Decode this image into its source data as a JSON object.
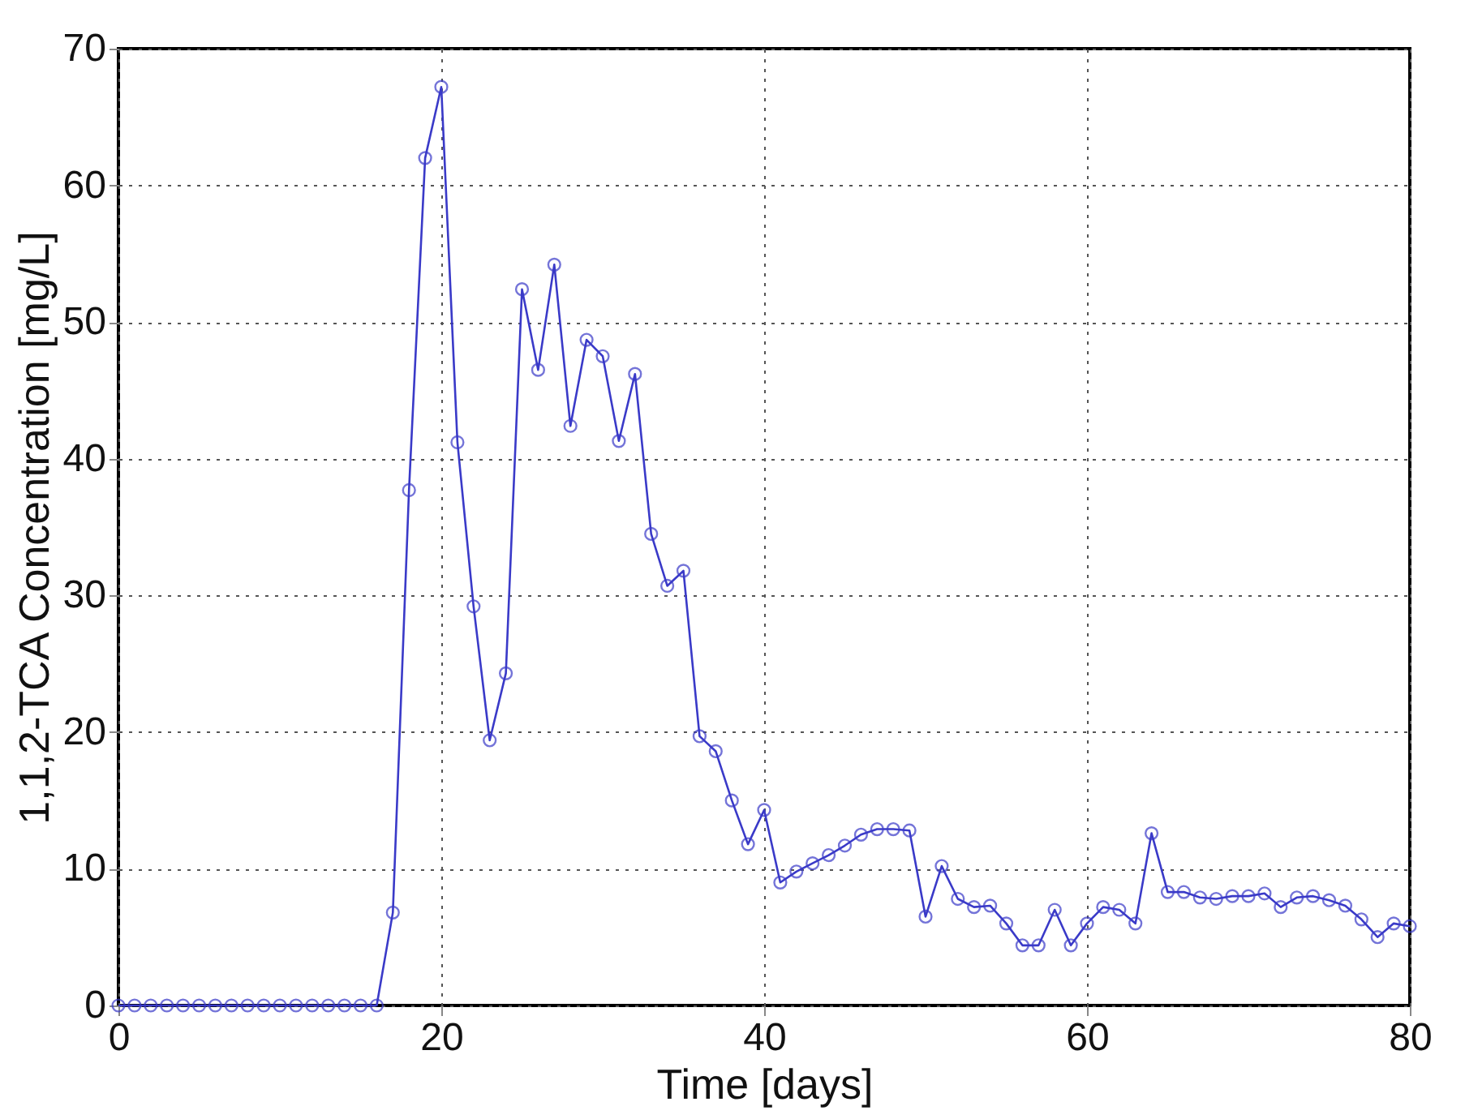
{
  "chart_data": {
    "type": "line",
    "xlabel": "Time [days]",
    "ylabel": "1,1,2-TCA Concentration [mg/L]",
    "x": [
      0,
      1,
      2,
      3,
      4,
      5,
      6,
      7,
      8,
      9,
      10,
      11,
      12,
      13,
      14,
      15,
      16,
      17,
      18,
      19,
      20,
      21,
      22,
      23,
      24,
      25,
      26,
      27,
      28,
      29,
      30,
      31,
      32,
      33,
      34,
      35,
      36,
      37,
      38,
      39,
      40,
      41,
      42,
      43,
      44,
      45,
      46,
      47,
      48,
      49,
      50,
      51,
      52,
      53,
      54,
      55,
      56,
      57,
      58,
      59,
      60,
      61,
      62,
      63,
      64,
      65,
      66,
      67,
      68,
      69,
      70,
      71,
      72,
      73,
      74,
      75,
      76,
      77,
      78,
      79,
      80
    ],
    "series": [
      {
        "color": "#3a3ac8",
        "values": [
          0,
          0,
          0,
          0,
          0,
          0,
          0,
          0,
          0,
          0,
          0,
          0,
          0,
          0,
          0,
          0,
          0,
          6.8,
          37.7,
          62,
          67.2,
          41.2,
          29.2,
          19.4,
          24.3,
          52.4,
          46.5,
          54.2,
          42.4,
          48.7,
          47.5,
          41.3,
          46.2,
          34.5,
          30.7,
          31.8,
          19.7,
          18.6,
          15,
          11.8,
          14.3,
          9,
          9.8,
          10.4,
          11,
          11.7,
          12.5,
          12.9,
          12.9,
          12.8,
          6.5,
          10.2,
          7.8,
          7.2,
          7.3,
          6,
          4.4,
          4.4,
          7,
          4.4,
          6,
          7.2,
          7,
          6,
          12.6,
          8.3,
          8.3,
          7.9,
          7.8,
          8,
          8,
          8.2,
          7.2,
          7.9,
          8,
          7.7,
          7.3,
          6.3,
          5,
          6,
          5.8
        ]
      }
    ],
    "xlim": [
      0,
      80
    ],
    "xticks": [
      0,
      20,
      40,
      60,
      80
    ],
    "ylim": [
      0,
      70
    ],
    "yticks": [
      0,
      10,
      20,
      30,
      40,
      50,
      60,
      70
    ],
    "grid": true,
    "marker": "circle",
    "line_style": "solid"
  }
}
